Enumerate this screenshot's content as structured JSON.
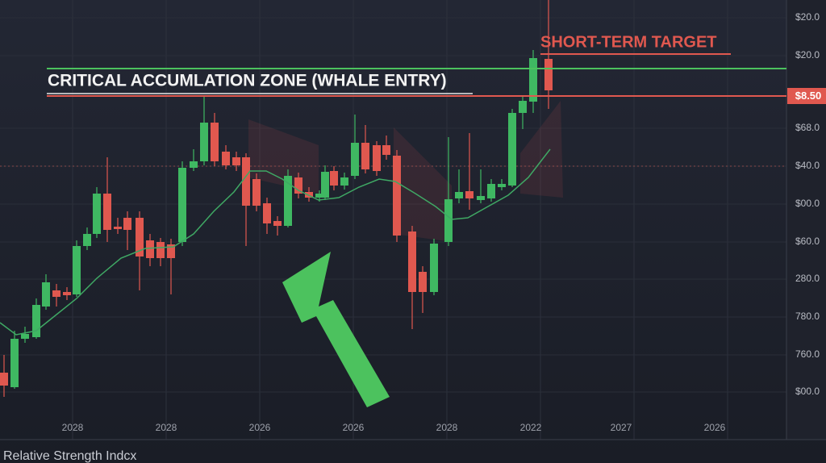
{
  "zone_label": "CRITICAL ACCUMLATION ZONE (WHALE ENTRY)",
  "target_label": "SHORT-TERM TARGET",
  "price_tag": "$8.50",
  "y_axis_labels": [
    "$20.0",
    "$20.0",
    "$68.0",
    "$40.0",
    "$00.0",
    "$60.0",
    "280.0",
    "780.0",
    "760.0",
    "$00.0"
  ],
  "x_axis_labels": [
    "2028",
    "2028",
    "2026",
    "2026",
    "2028",
    "2022",
    "2027",
    "2026"
  ],
  "indicator_label": "Relative Strength Indcx"
}
